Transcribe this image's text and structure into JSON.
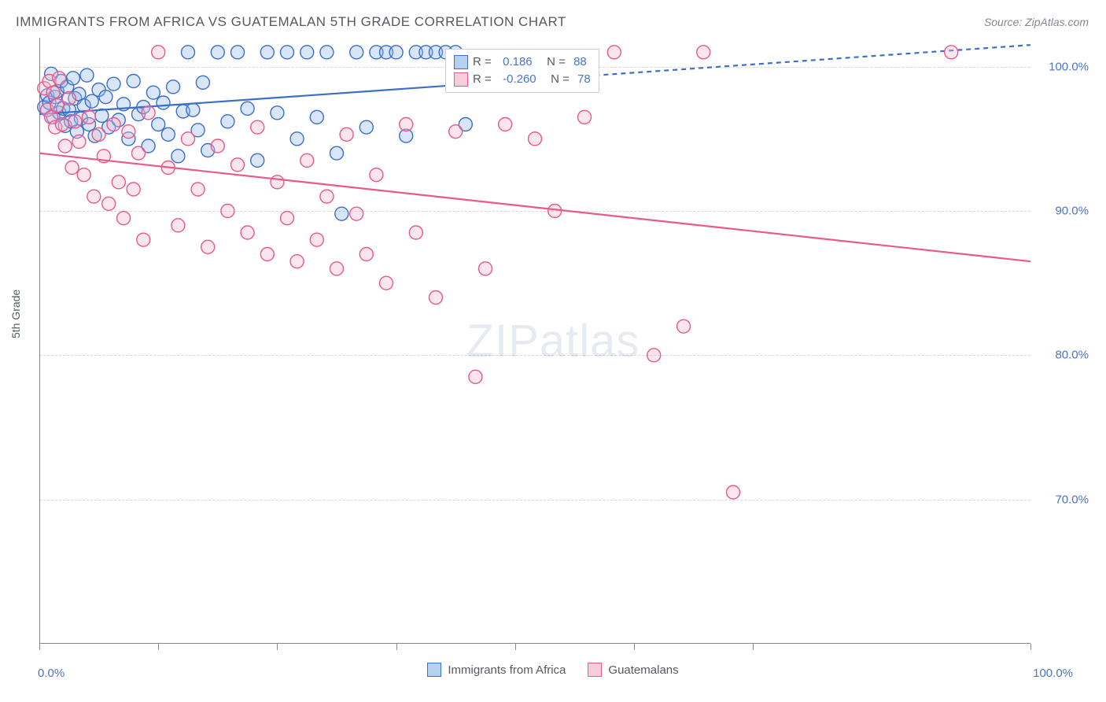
{
  "title": "IMMIGRANTS FROM AFRICA VS GUATEMALAN 5TH GRADE CORRELATION CHART",
  "source_label": "Source: ZipAtlas.com",
  "ylabel": "5th Grade",
  "watermark_a": "ZIP",
  "watermark_b": "atlas",
  "chart": {
    "type": "scatter",
    "background_color": "#ffffff",
    "grid_color": "#d8d8d8",
    "axis_color": "#888888",
    "label_color": "#555a60",
    "tick_label_color": "#4a74c9",
    "tick_fontsize": 15,
    "label_fontsize": 14,
    "title_fontsize": 17,
    "xlim": [
      0,
      100
    ],
    "ylim": [
      60,
      102
    ],
    "xticks": [
      0,
      12,
      24,
      36,
      48,
      60,
      72,
      100
    ],
    "xtick_labels": {
      "0": "0.0%",
      "100": "100.0%"
    },
    "yticks": [
      70,
      80,
      90,
      100
    ],
    "ytick_labels": {
      "70": "70.0%",
      "80": "80.0%",
      "90": "90.0%",
      "100": "100.0%"
    },
    "marker_radius": 8.5,
    "marker_fill_opacity": 0.35,
    "marker_stroke_width": 1.4,
    "trend_line_width": 2.2,
    "trend_dash": "6 5",
    "series": [
      {
        "name": "Immigrants from Africa",
        "color_fill": "#8fb6e8",
        "color_stroke": "#3b6fc9",
        "legend_swatch_fill": "#b8d0ef",
        "legend_swatch_border": "#3b6fc9",
        "r_label": "R =",
        "r_value": "0.186",
        "n_label": "N =",
        "n_value": "88",
        "trend": {
          "x1": 0,
          "y1": 96.7,
          "x2": 100,
          "y2": 101.5,
          "solid_until_x": 43
        },
        "points": [
          [
            0.5,
            97.2
          ],
          [
            0.8,
            98.0
          ],
          [
            1.0,
            97.5
          ],
          [
            1.2,
            99.5
          ],
          [
            1.4,
            96.5
          ],
          [
            1.6,
            97.9
          ],
          [
            1.8,
            98.3
          ],
          [
            2.0,
            96.8
          ],
          [
            2.2,
            99.0
          ],
          [
            2.4,
            97.1
          ],
          [
            2.6,
            95.9
          ],
          [
            2.8,
            98.6
          ],
          [
            3.0,
            97.0
          ],
          [
            3.2,
            96.2
          ],
          [
            3.4,
            99.2
          ],
          [
            3.6,
            97.8
          ],
          [
            3.8,
            95.5
          ],
          [
            4.0,
            98.1
          ],
          [
            4.2,
            96.4
          ],
          [
            4.5,
            97.3
          ],
          [
            4.8,
            99.4
          ],
          [
            5.0,
            96.0
          ],
          [
            5.3,
            97.6
          ],
          [
            5.6,
            95.2
          ],
          [
            6.0,
            98.4
          ],
          [
            6.3,
            96.6
          ],
          [
            6.7,
            97.9
          ],
          [
            7.0,
            95.8
          ],
          [
            7.5,
            98.8
          ],
          [
            8.0,
            96.3
          ],
          [
            8.5,
            97.4
          ],
          [
            9.0,
            95.0
          ],
          [
            9.5,
            99.0
          ],
          [
            10.0,
            96.7
          ],
          [
            10.5,
            97.2
          ],
          [
            11.0,
            94.5
          ],
          [
            11.5,
            98.2
          ],
          [
            12.0,
            96.0
          ],
          [
            12.5,
            97.5
          ],
          [
            13.0,
            95.3
          ],
          [
            13.5,
            98.6
          ],
          [
            14.0,
            93.8
          ],
          [
            14.5,
            96.9
          ],
          [
            15.0,
            101.0
          ],
          [
            15.5,
            97.0
          ],
          [
            16.0,
            95.6
          ],
          [
            16.5,
            98.9
          ],
          [
            17.0,
            94.2
          ],
          [
            18.0,
            101.0
          ],
          [
            19.0,
            96.2
          ],
          [
            20.0,
            101.0
          ],
          [
            21.0,
            97.1
          ],
          [
            22.0,
            93.5
          ],
          [
            23.0,
            101.0
          ],
          [
            24.0,
            96.8
          ],
          [
            25.0,
            101.0
          ],
          [
            26.0,
            95.0
          ],
          [
            27.0,
            101.0
          ],
          [
            28.0,
            96.5
          ],
          [
            29.0,
            101.0
          ],
          [
            30.0,
            94.0
          ],
          [
            30.5,
            89.8
          ],
          [
            32.0,
            101.0
          ],
          [
            33.0,
            95.8
          ],
          [
            34.0,
            101.0
          ],
          [
            35.0,
            101.0
          ],
          [
            36.0,
            101.0
          ],
          [
            37.0,
            95.2
          ],
          [
            38.0,
            101.0
          ],
          [
            39.0,
            101.0
          ],
          [
            40.0,
            101.0
          ],
          [
            41.0,
            101.0
          ],
          [
            42.0,
            101.0
          ],
          [
            43.0,
            96.0
          ]
        ]
      },
      {
        "name": "Guatemalans",
        "color_fill": "#f4b8ca",
        "color_stroke": "#e85a8a",
        "legend_swatch_fill": "#f6cdd9",
        "legend_swatch_border": "#e85a8a",
        "r_label": "R =",
        "r_value": "-0.260",
        "n_label": "N =",
        "n_value": "78",
        "trend": {
          "x1": 0,
          "y1": 94.0,
          "x2": 100,
          "y2": 86.5,
          "solid_until_x": 100
        },
        "points": [
          [
            0.5,
            98.5
          ],
          [
            0.8,
            97.0
          ],
          [
            1.0,
            99.0
          ],
          [
            1.2,
            96.5
          ],
          [
            1.4,
            98.2
          ],
          [
            1.6,
            95.8
          ],
          [
            1.8,
            97.3
          ],
          [
            2.0,
            99.2
          ],
          [
            2.3,
            96.0
          ],
          [
            2.6,
            94.5
          ],
          [
            3.0,
            97.8
          ],
          [
            3.3,
            93.0
          ],
          [
            3.6,
            96.2
          ],
          [
            4.0,
            94.8
          ],
          [
            4.5,
            92.5
          ],
          [
            5.0,
            96.5
          ],
          [
            5.5,
            91.0
          ],
          [
            6.0,
            95.3
          ],
          [
            6.5,
            93.8
          ],
          [
            7.0,
            90.5
          ],
          [
            7.5,
            96.0
          ],
          [
            8.0,
            92.0
          ],
          [
            8.5,
            89.5
          ],
          [
            9.0,
            95.5
          ],
          [
            9.5,
            91.5
          ],
          [
            10.0,
            94.0
          ],
          [
            10.5,
            88.0
          ],
          [
            11.0,
            96.8
          ],
          [
            12.0,
            101.0
          ],
          [
            13.0,
            93.0
          ],
          [
            14.0,
            89.0
          ],
          [
            15.0,
            95.0
          ],
          [
            16.0,
            91.5
          ],
          [
            17.0,
            87.5
          ],
          [
            18.0,
            94.5
          ],
          [
            19.0,
            90.0
          ],
          [
            20.0,
            93.2
          ],
          [
            21.0,
            88.5
          ],
          [
            22.0,
            95.8
          ],
          [
            23.0,
            87.0
          ],
          [
            24.0,
            92.0
          ],
          [
            25.0,
            89.5
          ],
          [
            26.0,
            86.5
          ],
          [
            27.0,
            93.5
          ],
          [
            28.0,
            88.0
          ],
          [
            29.0,
            91.0
          ],
          [
            30.0,
            86.0
          ],
          [
            31.0,
            95.3
          ],
          [
            32.0,
            89.8
          ],
          [
            33.0,
            87.0
          ],
          [
            34.0,
            92.5
          ],
          [
            35.0,
            85.0
          ],
          [
            37.0,
            96.0
          ],
          [
            38.0,
            88.5
          ],
          [
            40.0,
            84.0
          ],
          [
            42.0,
            95.5
          ],
          [
            44.0,
            78.5
          ],
          [
            45.0,
            86.0
          ],
          [
            47.0,
            96.0
          ],
          [
            50.0,
            95.0
          ],
          [
            52.0,
            90.0
          ],
          [
            55.0,
            96.5
          ],
          [
            58.0,
            101.0
          ],
          [
            62.0,
            80.0
          ],
          [
            65.0,
            82.0
          ],
          [
            67.0,
            101.0
          ],
          [
            70.0,
            70.5
          ],
          [
            92.0,
            101.0
          ]
        ]
      }
    ]
  },
  "legend_bottom": [
    {
      "label": "Immigrants from Africa",
      "fill": "#b8d0ef",
      "border": "#3b6fc9"
    },
    {
      "label": "Guatemalans",
      "fill": "#f6cdd9",
      "border": "#e85a8a"
    }
  ]
}
